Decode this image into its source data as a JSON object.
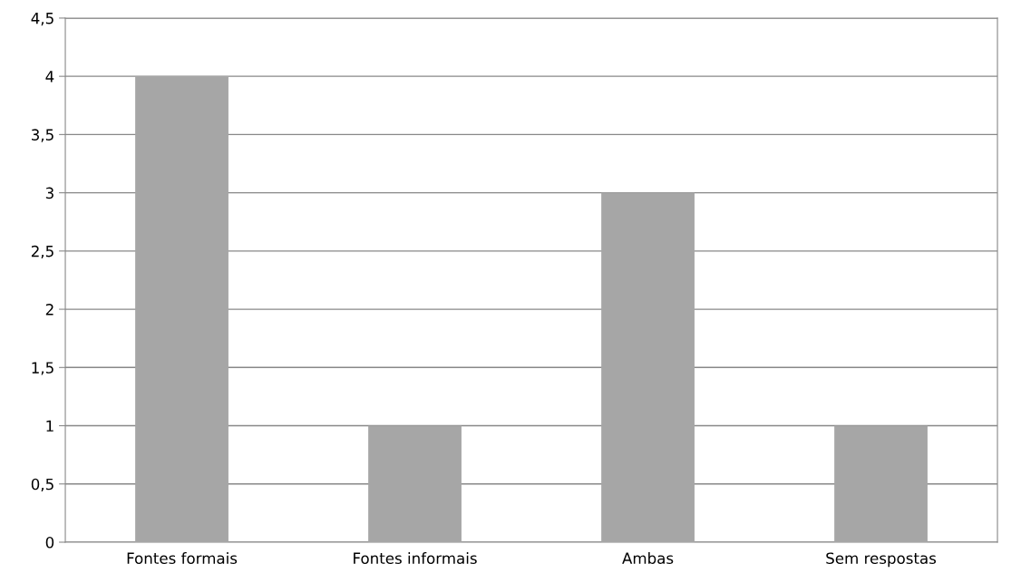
{
  "chart_data": {
    "type": "bar",
    "categories": [
      "Fontes formais",
      "Fontes informais",
      "Ambas",
      "Sem respostas"
    ],
    "values": [
      4,
      1,
      3,
      1
    ],
    "color": "#a6a6a6",
    "ylim": [
      0,
      4.5
    ],
    "yticks": [
      0,
      {
        "value": 0.5,
        "label": "0,5"
      },
      1,
      {
        "value": 1.5,
        "label": "1,5"
      },
      2,
      {
        "value": 2.5,
        "label": "2,5"
      },
      3,
      {
        "value": 3.5,
        "label": "3,5"
      },
      4,
      {
        "value": 4.5,
        "label": "4,5"
      }
    ],
    "grid": "y",
    "legend": false
  }
}
